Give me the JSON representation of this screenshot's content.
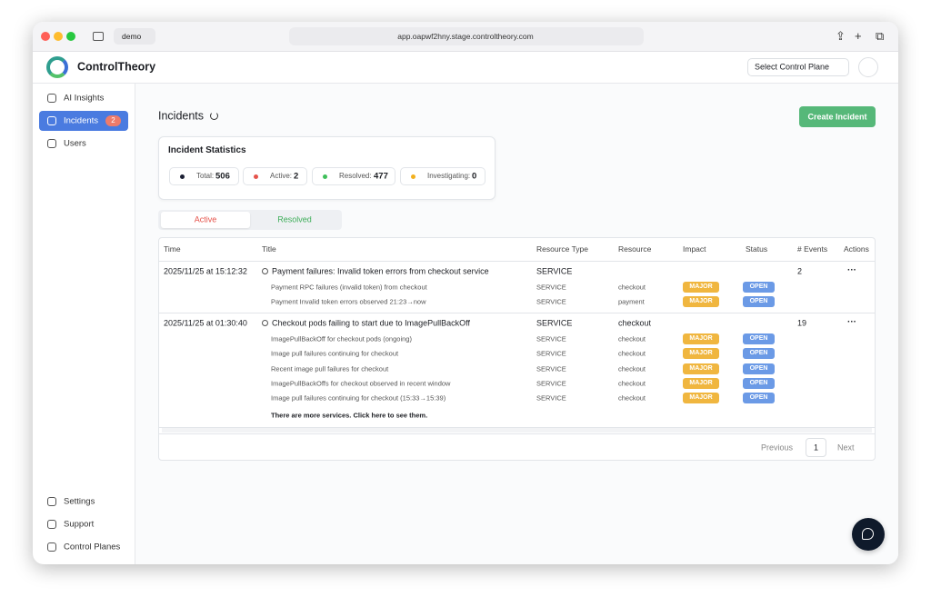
{
  "browser": {
    "profile": "demo",
    "url": "app.oapwf2hny.stage.controltheory.com"
  },
  "header": {
    "brand": "ControlTheory",
    "select": "Select Control Plane"
  },
  "sidebar": {
    "top": [
      {
        "label": "AI Insights"
      },
      {
        "label": "Incidents",
        "badge": 2
      },
      {
        "label": "Users"
      }
    ],
    "bottom": [
      {
        "label": "Settings"
      },
      {
        "label": "Support"
      },
      {
        "label": "Control Planes"
      }
    ]
  },
  "page": {
    "title": "Incidents",
    "button": "Create Incident"
  },
  "stats": {
    "title": "Incident Statistics",
    "items": [
      {
        "label": "Total:",
        "value": 506,
        "color": "#1b1f33"
      },
      {
        "label": "Active:",
        "value": 2,
        "color": "#e5534b"
      },
      {
        "label": "Resolved:",
        "value": 477,
        "color": "#3fbf5a"
      },
      {
        "label": "Investigating:",
        "value": 0,
        "color": "#f2b01e"
      }
    ]
  },
  "tabs": [
    "Active",
    "Resolved"
  ],
  "table": {
    "columns": [
      "Time",
      "Title",
      "Resource Type",
      "Resource",
      "Impact",
      "Status",
      "# Events",
      "Actions"
    ],
    "incidents": [
      {
        "time": "2025/11/25 at 15:12:32",
        "title": "Payment failures: Invalid token errors from checkout service",
        "resource_type": "SERVICE",
        "events": 2,
        "services": [
          {
            "title": "Payment RPC failures (invalid token) from checkout",
            "type": "SERVICE",
            "resource": "checkout",
            "impact": "MAJOR",
            "status": "OPEN"
          },
          {
            "title": "Payment Invalid token errors observed 21:23→now",
            "type": "SERVICE",
            "resource": "payment",
            "impact": "MAJOR",
            "status": "OPEN"
          }
        ]
      },
      {
        "time": "2025/11/25 at 01:30:40",
        "title": "Checkout pods failing to start due to ImagePullBackOff",
        "resource_type": "SERVICE",
        "resource": "checkout",
        "events": 19,
        "services": [
          {
            "title": "ImagePullBackOff for checkout pods (ongoing)",
            "type": "SERVICE",
            "resource": "checkout",
            "impact": "MAJOR",
            "status": "OPEN"
          },
          {
            "title": "Image pull failures continuing for checkout",
            "type": "SERVICE",
            "resource": "checkout",
            "impact": "MAJOR",
            "status": "OPEN"
          },
          {
            "title": "Recent image pull failures for checkout",
            "type": "SERVICE",
            "resource": "checkout",
            "impact": "MAJOR",
            "status": "OPEN"
          },
          {
            "title": "ImagePullBackOffs for checkout observed in recent window",
            "type": "SERVICE",
            "resource": "checkout",
            "impact": "MAJOR",
            "status": "OPEN"
          },
          {
            "title": "Image pull failures continuing for checkout (15:33→15:39)",
            "type": "SERVICE",
            "resource": "checkout",
            "impact": "MAJOR",
            "status": "OPEN"
          }
        ],
        "more": "There are more services. Click here to see them."
      }
    ]
  },
  "pagination": {
    "previous": "Previous",
    "page": 1,
    "next": "Next"
  }
}
